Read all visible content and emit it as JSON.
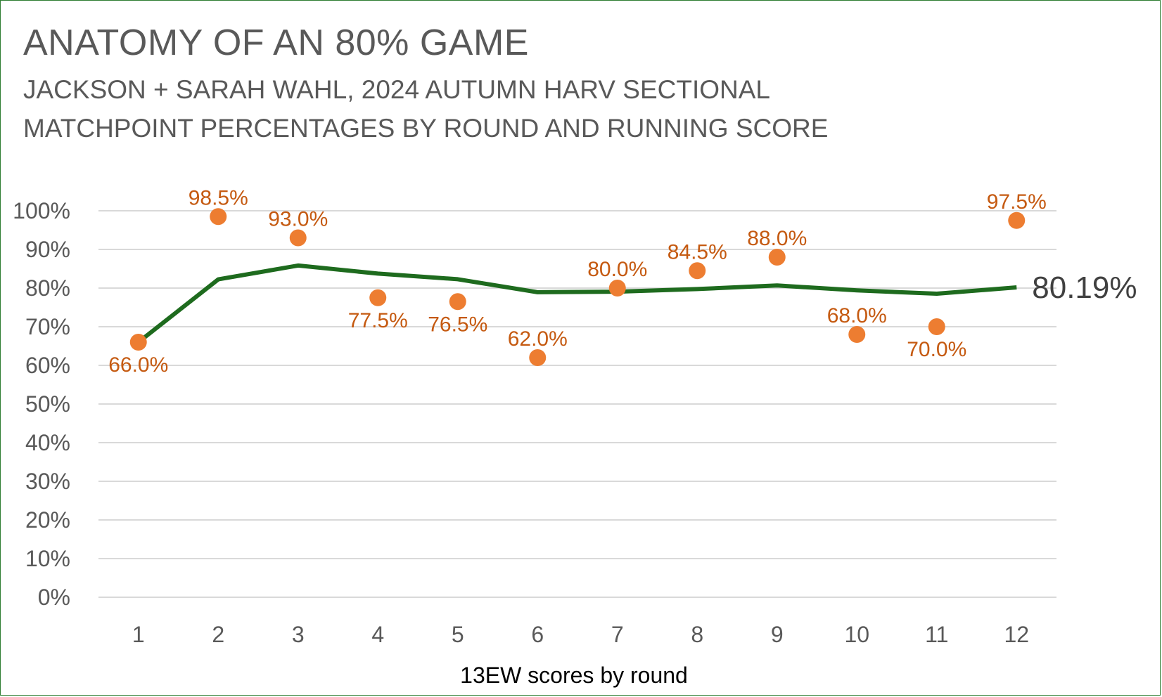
{
  "title": "ANATOMY OF AN 80% GAME",
  "subtitle_line1": "JACKSON + SARAH WAHL, 2024 AUTUMN HARV SECTIONAL",
  "subtitle_line2": "MATCHPOINT PERCENTAGES BY ROUND AND RUNNING SCORE",
  "colors": {
    "frame": "#2e7d32",
    "line": "#1e6b1e",
    "markers": "#ed7d31",
    "data_labels": "#c55a11",
    "text": "#595959",
    "grid": "#d9d9d9"
  },
  "chart_data": {
    "type": "line",
    "categories": [
      "1",
      "2",
      "3",
      "4",
      "5",
      "6",
      "7",
      "8",
      "9",
      "10",
      "11",
      "12"
    ],
    "xlabel": "13EW scores by round",
    "ylabel": "",
    "ylim": [
      0,
      100
    ],
    "yticks": [
      "0%",
      "10%",
      "20%",
      "30%",
      "40%",
      "50%",
      "60%",
      "70%",
      "80%",
      "90%",
      "100%"
    ],
    "grid": true,
    "series": [
      {
        "type": "scatter",
        "values": [
          66.0,
          98.5,
          93.0,
          77.5,
          76.5,
          62.0,
          80.0,
          84.5,
          88.0,
          68.0,
          70.0,
          97.5
        ],
        "labels": [
          "66.0%",
          "98.5%",
          "93.0%",
          "77.5%",
          "76.5%",
          "62.0%",
          "80.0%",
          "84.5%",
          "88.0%",
          "68.0%",
          "70.0%",
          "97.5%"
        ],
        "label_position": [
          "below",
          "above",
          "above",
          "below",
          "below",
          "above",
          "above",
          "above",
          "above",
          "above",
          "below",
          "above"
        ]
      },
      {
        "type": "line",
        "values": [
          66.0,
          82.25,
          85.83,
          83.75,
          82.3,
          78.92,
          79.07,
          79.75,
          80.67,
          79.4,
          78.55,
          80.19
        ],
        "end_label": "80.19%"
      }
    ]
  }
}
